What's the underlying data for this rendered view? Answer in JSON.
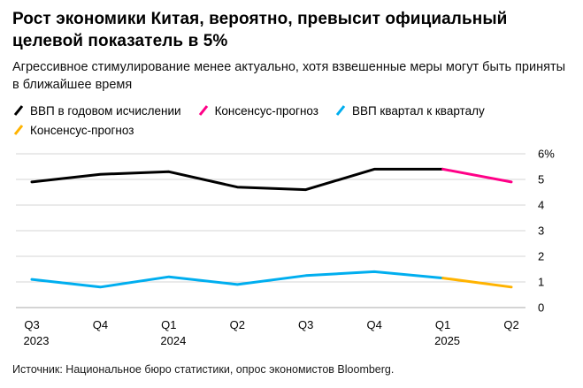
{
  "header": {
    "title": "Рост экономики Китая, вероятно, превысит официальный целевой показатель в 5%",
    "subtitle": "Агрессивное стимулирование менее актуально, хотя взвешенные меры могут быть приняты в ближайшее время"
  },
  "source": "Источник: Национальное бюро статистики, опрос экономистов Bloomberg.",
  "chart_data": {
    "type": "line",
    "x_ticks": [
      {
        "label": "Q3",
        "year": "2023"
      },
      {
        "label": "Q4",
        "year": ""
      },
      {
        "label": "Q1",
        "year": "2024"
      },
      {
        "label": "Q2",
        "year": ""
      },
      {
        "label": "Q3",
        "year": ""
      },
      {
        "label": "Q4",
        "year": ""
      },
      {
        "label": "Q1",
        "year": "2025"
      },
      {
        "label": "Q2",
        "year": ""
      }
    ],
    "ylim": [
      0,
      6
    ],
    "yticks": [
      0,
      1,
      2,
      3,
      4,
      5,
      6
    ],
    "ytick_top_suffix": "%",
    "grid": true,
    "legend_position": "top",
    "series": [
      {
        "name": "ВВП в годовом исчислении",
        "color": "#000000",
        "values": [
          4.9,
          5.2,
          5.3,
          4.7,
          4.6,
          5.4,
          5.4,
          null
        ]
      },
      {
        "name": "Консенсус-прогноз",
        "color": "#ff0087",
        "values": [
          null,
          null,
          null,
          null,
          null,
          null,
          5.4,
          4.9
        ]
      },
      {
        "name": "ВВП квартал к кварталу",
        "color": "#00aeef",
        "values": [
          1.1,
          0.8,
          1.2,
          0.9,
          1.25,
          1.4,
          1.15,
          null
        ]
      },
      {
        "name": "Консенсус-прогноз",
        "color": "#ffb300",
        "values": [
          null,
          null,
          null,
          null,
          null,
          null,
          1.15,
          0.8
        ]
      }
    ]
  }
}
